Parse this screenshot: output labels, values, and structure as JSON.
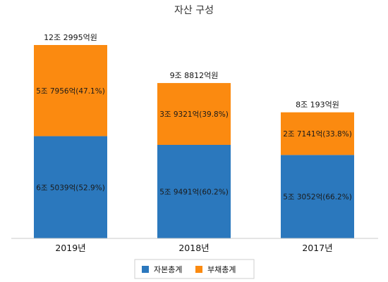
{
  "chart_data": {
    "type": "bar",
    "stacked": true,
    "title": "자산 구성",
    "unit": "억원",
    "categories": [
      "2019년",
      "2018년",
      "2017년"
    ],
    "totals": [
      122995,
      98812,
      80193
    ],
    "total_labels": [
      "12조 2995억원",
      "9조 8812억원",
      "8조 193억원"
    ],
    "series": [
      {
        "name": "자본총계",
        "color": "#2b78bd",
        "values": [
          65039,
          59491,
          53052
        ],
        "labels": [
          "6조 5039억(52.9%)",
          "5조 9491억(60.2%)",
          "5조 3052억(66.2%)"
        ]
      },
      {
        "name": "부채총계",
        "color": "#fb8a10",
        "values": [
          57956,
          39321,
          27141
        ],
        "labels": [
          "5조 7956억(47.1%)",
          "3조 9321억(39.8%)",
          "2조 7141억(33.8%)"
        ]
      }
    ],
    "ylim": [
      0,
      122995
    ],
    "grid": false,
    "legend_position": "bottom"
  }
}
